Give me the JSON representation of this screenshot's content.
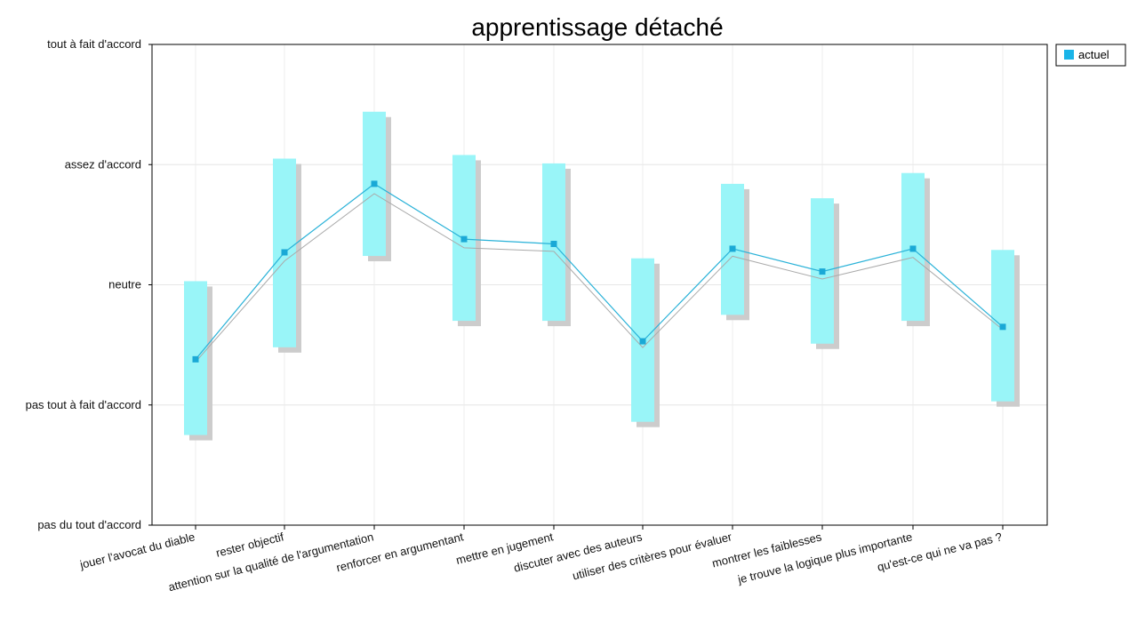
{
  "chart_data": {
    "type": "line",
    "title": "apprentissage détaché",
    "xlabel": "",
    "ylabel": "",
    "y_tick_labels": [
      "pas du tout d'accord",
      "pas tout à fait d'accord",
      "neutre",
      "assez d'accord",
      "tout à fait d'accord"
    ],
    "ylim": [
      1,
      5
    ],
    "categories": [
      "jouer l'avocat du diable",
      "rester objectif",
      "attention sur la qualité de l'argumentation",
      "renforcer en argumentant",
      "mettre en jugement",
      "discuter avec des auteurs",
      "utiliser des critères pour évaluer",
      "montrer les faiblesses",
      "je trouve la logique plus importante",
      "qu'est-ce qui ne va pas ?"
    ],
    "series": [
      {
        "name": "actuel",
        "values": [
          2.38,
          3.27,
          3.84,
          3.38,
          3.34,
          2.53,
          3.3,
          3.11,
          3.3,
          2.65
        ],
        "range_low": [
          1.75,
          2.48,
          3.24,
          2.7,
          2.7,
          1.86,
          2.75,
          2.51,
          2.7,
          2.03
        ],
        "range_high": [
          3.03,
          4.05,
          4.44,
          4.08,
          4.01,
          3.22,
          3.84,
          3.72,
          3.93,
          3.29
        ]
      }
    ],
    "reference_line": [
      2.38,
      3.22,
      3.78,
      3.33,
      3.3,
      2.5,
      3.26,
      3.07,
      3.25,
      2.65
    ],
    "grid": true,
    "legend_position": "top-right",
    "colors": {
      "line": "#2ab2d8",
      "marker": "#1aa9d6",
      "range_bar": "#99f5f8",
      "range_shadow": "#cccccc",
      "reference_line": "#aaaaaa",
      "legend_swatch": "#1ab4e8"
    }
  }
}
